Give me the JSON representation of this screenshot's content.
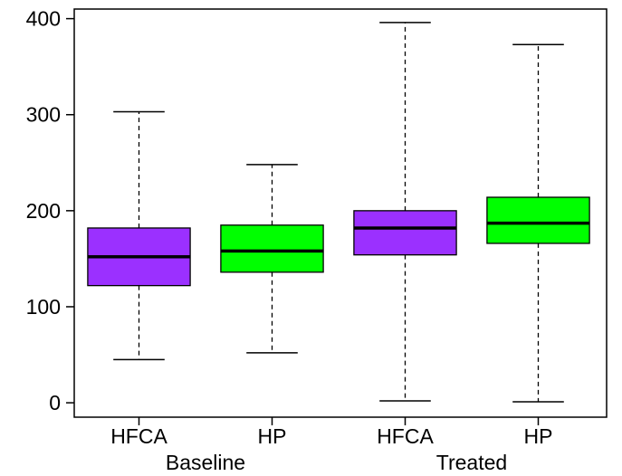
{
  "chart_data": {
    "type": "boxplot",
    "title": "",
    "xlabel": "",
    "ylabel": "",
    "ylim": [
      -15,
      410
    ],
    "y_ticks": [
      0,
      100,
      200,
      300,
      400
    ],
    "y_tick_labels": [
      "0",
      "100",
      "200",
      "300",
      "400"
    ],
    "grid": false,
    "legend": "none",
    "groups": [
      {
        "label": "Baseline",
        "members": [
          0,
          1
        ]
      },
      {
        "label": "Treated",
        "members": [
          2,
          3
        ]
      }
    ],
    "boxes": [
      {
        "label": "HFCA",
        "group": "Baseline",
        "min": 45,
        "q1": 122,
        "median": 152,
        "q3": 182,
        "max": 303,
        "color": "#9b30ff"
      },
      {
        "label": "HP",
        "group": "Baseline",
        "min": 52,
        "q1": 136,
        "median": 158,
        "q3": 185,
        "max": 248,
        "color": "#00ff00"
      },
      {
        "label": "HFCA",
        "group": "Treated",
        "min": 2,
        "q1": 154,
        "median": 182,
        "q3": 200,
        "max": 396,
        "color": "#9b30ff"
      },
      {
        "label": "HP",
        "group": "Treated",
        "min": 1,
        "q1": 166,
        "median": 187,
        "q3": 214,
        "max": 373,
        "color": "#00ff00"
      }
    ]
  }
}
